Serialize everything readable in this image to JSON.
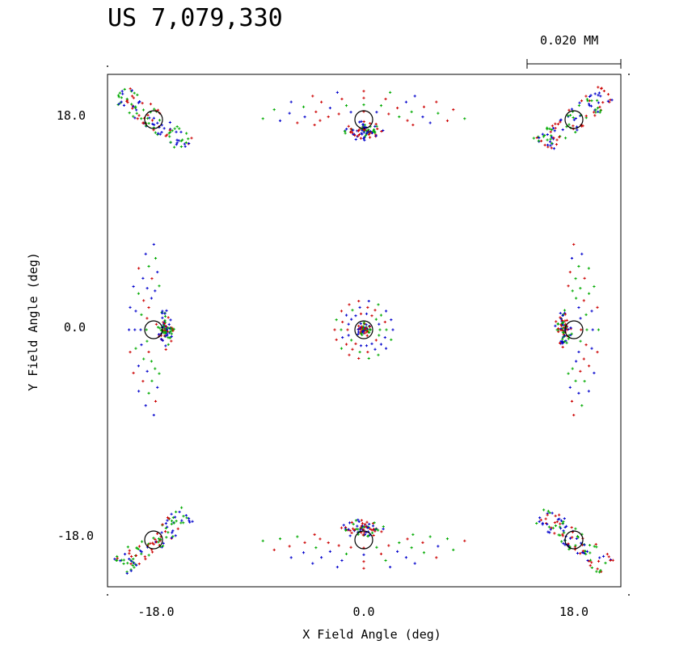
{
  "title": "US 7,079,330",
  "scale_bar": {
    "label": "0.020 MM"
  },
  "chart_data": {
    "type": "scatter",
    "title": "US 7,079,330",
    "xlabel": "X Field Angle (deg)",
    "ylabel": "Y Field Angle (deg)",
    "x_ticks": [
      "-18.0",
      "0.0",
      "18.0"
    ],
    "y_ticks": [
      "18.0",
      "0.0",
      "-18.0"
    ],
    "xlim": [
      -22,
      22
    ],
    "ylim": [
      -22,
      22
    ],
    "grid": false,
    "scale_bar": "0.020 MM",
    "series_colors": [
      "#0000cc",
      "#00aa00",
      "#cc0000",
      "#000000"
    ],
    "airy_circle_color": "#000000",
    "field_points": [
      {
        "x": -18,
        "y": 18,
        "shape": "diagonal-asymmetric"
      },
      {
        "x": 0,
        "y": 18,
        "shape": "arc-down"
      },
      {
        "x": 18,
        "y": 18,
        "shape": "diagonal-asymmetric"
      },
      {
        "x": -18,
        "y": 0,
        "shape": "arc-left"
      },
      {
        "x": 0,
        "y": 0,
        "shape": "compact-core"
      },
      {
        "x": 18,
        "y": 0,
        "shape": "arc-right"
      },
      {
        "x": -18,
        "y": -18,
        "shape": "diagonal-asymmetric"
      },
      {
        "x": 0,
        "y": -18,
        "shape": "arc-up"
      },
      {
        "x": 18,
        "y": -18,
        "shape": "diagonal-asymmetric"
      }
    ]
  }
}
